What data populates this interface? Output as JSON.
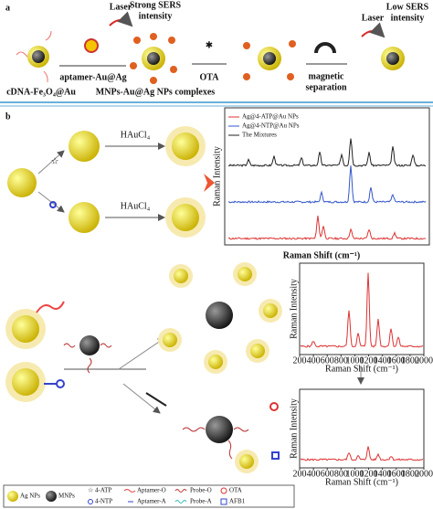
{
  "panel_a": {
    "label": "a",
    "laser_1": "Laser",
    "strong_sers_1": "Strong SERS",
    "strong_sers_2": "intensity",
    "aptamer": "aptamer-Au@Ag",
    "ota": "OTA",
    "magnetic_1": "magnetic",
    "magnetic_2": "separation",
    "laser_2": "Laser",
    "low_sers_1": "Low SERS",
    "low_sers_2": "intensity",
    "cdna": "cDNA-Fe₃O₄@Au",
    "complexes": "MNPs-Au@Ag NPs complexes"
  },
  "panel_b": {
    "label": "b",
    "hauc_1": "HAuCl₄",
    "hauc_2": "HAuCl₄",
    "spectra": {
      "y_label": "Raman Intensity",
      "x_label": "Raman Shift (cm⁻¹)",
      "legend": [
        "Ag@4-ATP@Au NPs",
        "Ag@4-NTP@Au NPs",
        "The Mixtures"
      ]
    },
    "chart_top": {
      "y_label": "Raman Intensity",
      "x_label": "Raman Shift (cm⁻¹)",
      "xlim": [
        200,
        2000
      ],
      "xticks": [
        200,
        400,
        600,
        800,
        1000,
        1200,
        1400,
        1600,
        1800,
        2000
      ]
    },
    "chart_bottom": {
      "y_label": "Raman Intensity",
      "x_label": "Raman Shift (cm⁻¹)",
      "xlim": [
        200,
        2000
      ],
      "xticks": [
        200,
        400,
        600,
        800,
        1000,
        1200,
        1400,
        1600,
        1800,
        2000
      ]
    },
    "legend": [
      "Ag NPs",
      "MNPs",
      "4-ATP",
      "4-NTP",
      "Aptamer-O",
      "Aptamer-A",
      "Probe-O",
      "Probe-A",
      "OTA",
      "AFB1"
    ]
  }
}
